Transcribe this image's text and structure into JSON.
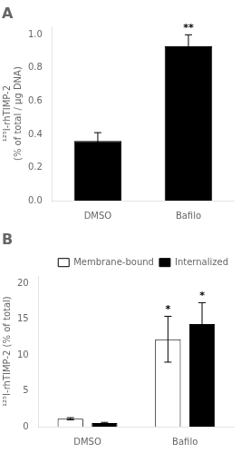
{
  "chart_data": [
    {
      "type": "bar",
      "title": "A",
      "categories": [
        "DMSO",
        "Bafilo"
      ],
      "values": [
        0.36,
        0.93
      ],
      "errors": [
        0.05,
        0.07
      ],
      "color": "#000000",
      "ylabel": "¹²⁵I-rhTIMP-2\n(% of total / μg DNA)",
      "ylim": [
        0,
        1.05
      ],
      "yticks": [
        {
          "value": 0.0,
          "label": "0.0"
        },
        0.2,
        0.4,
        0.6,
        0.8,
        {
          "value": 1.0,
          "label": "1.0"
        }
      ],
      "grid": false,
      "annotations": [
        {
          "category": "Bafilo",
          "text": "**"
        }
      ]
    },
    {
      "type": "bar",
      "title": "B",
      "categories": [
        "DMSO",
        "Bafilo"
      ],
      "series": [
        {
          "name": "Membrane-bound",
          "color": "#ffffff",
          "values": [
            1.1,
            12.2
          ],
          "errors": [
            0.15,
            3.2
          ]
        },
        {
          "name": "Internalized",
          "color": "#000000",
          "values": [
            0.5,
            14.3
          ],
          "errors": [
            0.1,
            3.0
          ]
        }
      ],
      "ylabel": "¹²⁵I-rhTIMP-2 (% of total)",
      "ylim": [
        0,
        21
      ],
      "yticks": [
        0,
        5,
        10,
        15,
        20
      ],
      "grid": false,
      "legend": "upper right",
      "annotations": [
        {
          "category": "Bafilo",
          "series": "Membrane-bound",
          "text": "*"
        },
        {
          "category": "Bafilo",
          "series": "Internalized",
          "text": "*"
        }
      ]
    }
  ]
}
